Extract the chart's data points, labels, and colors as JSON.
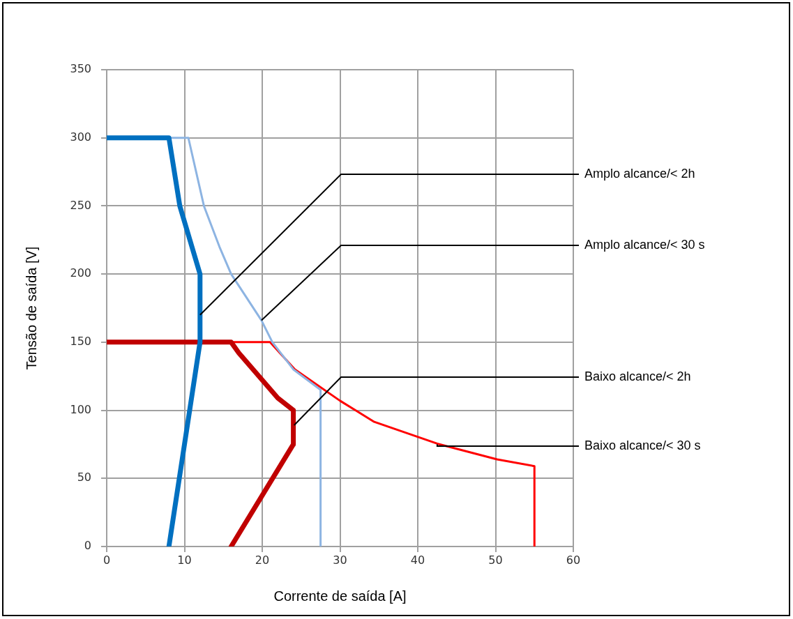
{
  "chart_data": {
    "type": "line",
    "xlabel": "Corrente de saída [A]",
    "ylabel": "Tensão de saída [V]",
    "xlim": [
      0,
      60
    ],
    "xticks": [
      0,
      10,
      20,
      30,
      40,
      50,
      60
    ],
    "ylim": [
      0,
      350
    ],
    "yticks": [
      0,
      50,
      100,
      150,
      200,
      250,
      300,
      350
    ],
    "grid": true,
    "legend": false,
    "marker": "none",
    "line_style": "solid",
    "series": [
      {
        "color": "#0070c0",
        "x": [
          0,
          8,
          9.4,
          12,
          12,
          8
        ],
        "values": [
          300,
          300,
          250,
          200,
          150,
          0
        ]
      },
      {
        "color": "#8db4e2",
        "x": [
          0,
          10.5,
          12.5,
          14.5,
          16,
          19.9,
          21.3,
          24,
          27.5,
          27.5
        ],
        "values": [
          300,
          300,
          250,
          220,
          200,
          166,
          150,
          130,
          115,
          0
        ]
      },
      {
        "color": "#c00000",
        "x": [
          0,
          16,
          17,
          22,
          24,
          24,
          16
        ],
        "values": [
          150,
          150,
          142,
          109,
          100,
          75,
          0
        ]
      },
      {
        "color": "#ff0000",
        "x": [
          0,
          21,
          24.2,
          30,
          34.4,
          42.5,
          50.2,
          55,
          55
        ],
        "values": [
          150,
          150,
          130,
          107,
          91.5,
          75.5,
          64,
          59,
          0
        ]
      }
    ],
    "annotations": [
      {
        "text": "Amplo alcance/< 2h",
        "x": 12,
        "y": 170
      },
      {
        "text": "Amplo alcance/< 30 s",
        "x": 19.9,
        "y": 166
      },
      {
        "text": "Baixo alcance/< 2h",
        "x": 24.1,
        "y": 89
      },
      {
        "text": "Baixo alcance/< 30 s",
        "x": 42.5,
        "y": 75
      }
    ]
  }
}
